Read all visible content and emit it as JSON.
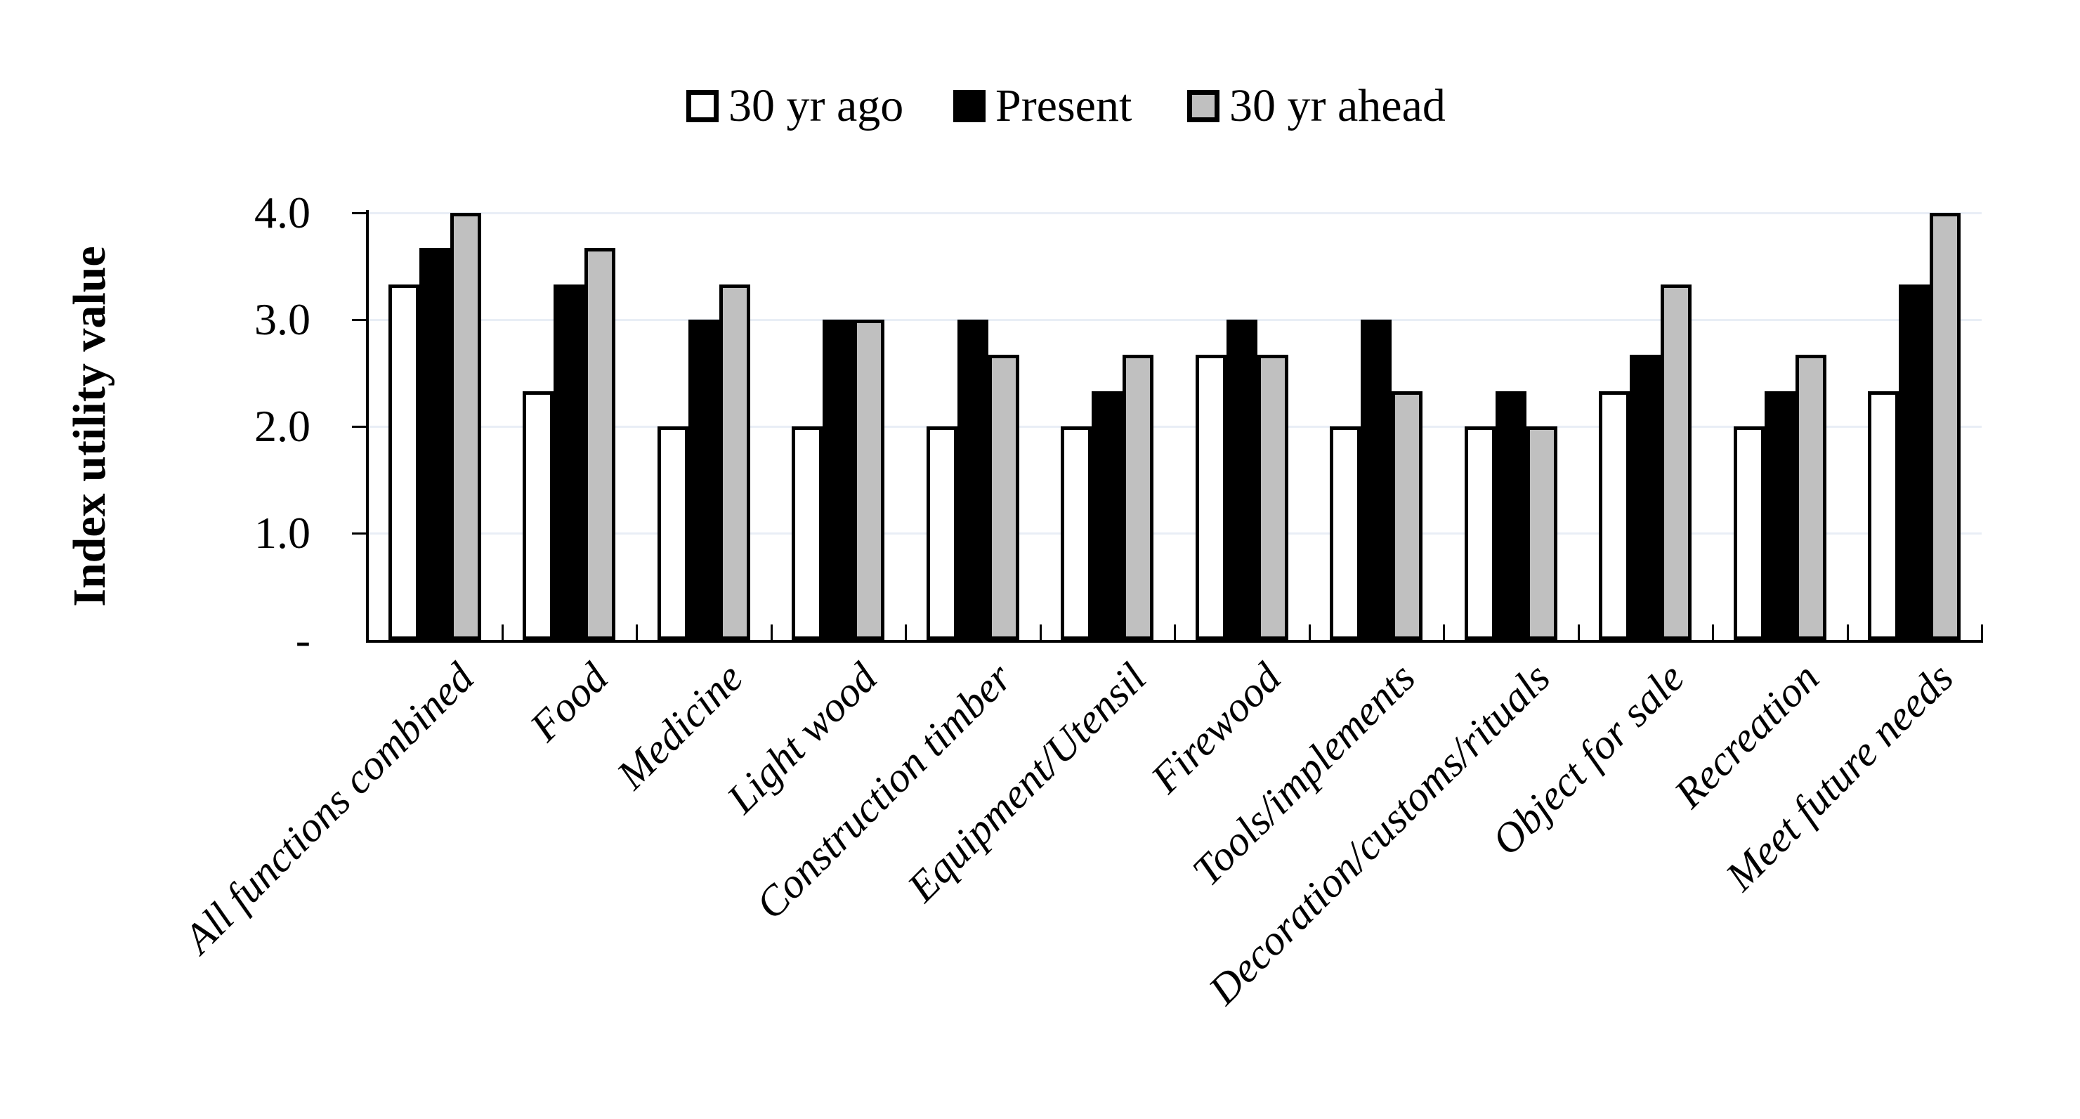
{
  "chart_data": {
    "type": "bar",
    "title": "",
    "ylabel": "Index utility value",
    "xlabel": "",
    "ylim": [
      0,
      4
    ],
    "grid": "horizontal-light",
    "legend_position": "top-center",
    "yticks": [
      {
        "value": 4,
        "label": "4.0"
      },
      {
        "value": 3,
        "label": "3.0"
      },
      {
        "value": 2,
        "label": "2.0"
      },
      {
        "value": 1,
        "label": "1.0"
      },
      {
        "value": 0,
        "label": "-"
      }
    ],
    "categories": [
      "All functions combined",
      "Food",
      "Medicine",
      "Light wood",
      "Construction timber",
      "Equipment/Utensil",
      "Firewood",
      "Tools/implements",
      "Decoration/customs/rituals",
      "Object for sale",
      "Recreation",
      "Meet future needs"
    ],
    "series": [
      {
        "name": "30 yr ago",
        "fill": "#ffffff",
        "stroke": "#000000",
        "values": [
          3.33,
          2.33,
          2.0,
          2.0,
          2.0,
          2.0,
          2.67,
          2.0,
          2.0,
          2.33,
          2.0,
          2.33
        ]
      },
      {
        "name": "Present",
        "fill": "#000000",
        "stroke": "#000000",
        "values": [
          3.67,
          3.33,
          3.0,
          3.0,
          3.0,
          2.33,
          3.0,
          3.0,
          2.33,
          2.67,
          2.33,
          3.33
        ]
      },
      {
        "name": "30 yr ahead",
        "fill": "#c0c0c0",
        "stroke": "#000000",
        "values": [
          4.0,
          3.67,
          3.33,
          3.0,
          2.67,
          2.67,
          2.67,
          2.33,
          2.0,
          3.33,
          2.67,
          4.0
        ]
      }
    ],
    "colors": {
      "background": "#ffffff",
      "axis": "#000000",
      "text": "#000000",
      "gridline": "#e9eef6",
      "bar_gray": "#c0c0c0",
      "bar_black": "#000000",
      "bar_white": "#ffffff"
    }
  }
}
